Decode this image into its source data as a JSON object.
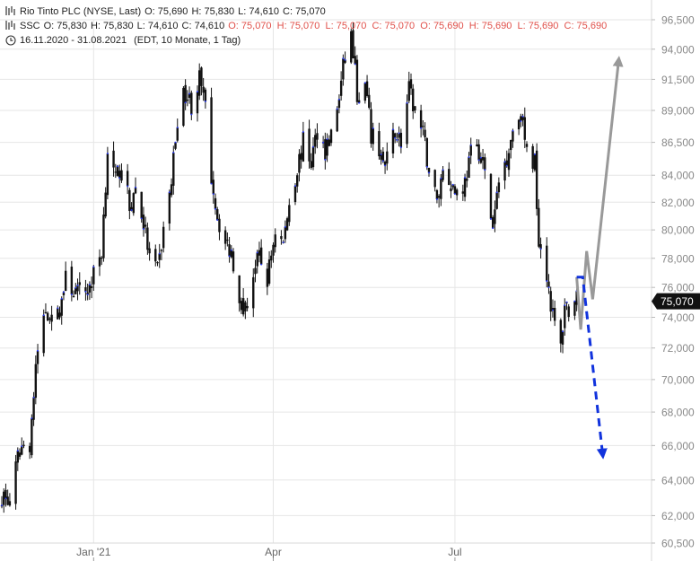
{
  "legend": {
    "row1": {
      "name": "Rio Tinto PLC (NYSE, Last)",
      "o": "O: 75,690",
      "h": "H: 75,830",
      "l": "L: 74,610",
      "c": "C: 75,070"
    },
    "row2": {
      "name": "SSC",
      "o": "O: 75,830",
      "h": "H: 75,830",
      "l": "L: 74,610",
      "c": "C: 74,610",
      "red": "O: 75,070  H: 75,070  L: 75,070  C: 75,070  O: 75,690  H: 75,690  L: 75,690  C: 75,690"
    },
    "row3": {
      "range": "16.11.2020 - 31.08.2021",
      "info": "(EDT, 10 Monate, 1 Tag)"
    }
  },
  "colors": {
    "candle": "#111111",
    "candle_accent": "#2233ee",
    "grid": "#e6e6e6",
    "up_arrow": "#999999",
    "down_arrow": "#1133dd",
    "badge": "#111111"
  },
  "chart_data": {
    "type": "candlestick",
    "y_scale": "log",
    "ylim": [
      60500,
      96500
    ],
    "yticks": [
      96500,
      94000,
      91500,
      89000,
      86500,
      84000,
      82000,
      80000,
      78000,
      76000,
      74000,
      72000,
      70000,
      68000,
      66000,
      64000,
      62000,
      60500
    ],
    "ytick_labels": [
      "96,500",
      "94,000",
      "91,500",
      "89,000",
      "86,500",
      "84,000",
      "82,000",
      "80,000",
      "78,000",
      "76,000",
      "74,000",
      "72,000",
      "70,000",
      "68,000",
      "66,000",
      "64,000",
      "62,000",
      "60,500"
    ],
    "x_range": [
      "2020-11-16",
      "2021-09-24"
    ],
    "xticks": [
      {
        "date": "2021-01-01",
        "label": "Jan '21"
      },
      {
        "date": "2021-04-01",
        "label": "Apr"
      },
      {
        "date": "2021-07-01",
        "label": "Jul"
      }
    ],
    "last_value": 75070,
    "last_label": "75,070",
    "path_points": [
      [
        "2020-11-16",
        63200
      ],
      [
        "2020-11-20",
        62600
      ],
      [
        "2020-11-25",
        65800
      ],
      [
        "2020-11-30",
        66200
      ],
      [
        "2020-12-04",
        71800
      ],
      [
        "2020-12-08",
        74500
      ],
      [
        "2020-12-14",
        74000
      ],
      [
        "2020-12-18",
        76500
      ],
      [
        "2020-12-24",
        75500
      ],
      [
        "2020-12-30",
        76000
      ],
      [
        "2021-01-05",
        78500
      ],
      [
        "2021-01-08",
        86000
      ],
      [
        "2021-01-12",
        83500
      ],
      [
        "2021-01-15",
        85000
      ],
      [
        "2021-01-19",
        81500
      ],
      [
        "2021-01-22",
        83000
      ],
      [
        "2021-01-26",
        80500
      ],
      [
        "2021-01-29",
        78000
      ],
      [
        "2021-02-02",
        77000
      ],
      [
        "2021-02-05",
        80000
      ],
      [
        "2021-02-09",
        83500
      ],
      [
        "2021-02-12",
        88500
      ],
      [
        "2021-02-16",
        90500
      ],
      [
        "2021-02-19",
        89500
      ],
      [
        "2021-02-23",
        91500
      ],
      [
        "2021-02-26",
        89000
      ],
      [
        "2021-03-01",
        84000
      ],
      [
        "2021-03-04",
        81000
      ],
      [
        "2021-03-08",
        79000
      ],
      [
        "2021-03-11",
        78500
      ],
      [
        "2021-03-15",
        75500
      ],
      [
        "2021-03-18",
        74500
      ],
      [
        "2021-03-22",
        77000
      ],
      [
        "2021-03-25",
        78000
      ],
      [
        "2021-03-29",
        76500
      ],
      [
        "2021-04-02",
        80000
      ],
      [
        "2021-04-06",
        79000
      ],
      [
        "2021-04-09",
        82000
      ],
      [
        "2021-04-13",
        84500
      ],
      [
        "2021-04-16",
        86500
      ],
      [
        "2021-04-20",
        85000
      ],
      [
        "2021-04-23",
        87500
      ],
      [
        "2021-04-27",
        86000
      ],
      [
        "2021-04-30",
        87000
      ],
      [
        "2021-05-04",
        90000
      ],
      [
        "2021-05-07",
        93500
      ],
      [
        "2021-05-10",
        95200
      ],
      [
        "2021-05-12",
        92000
      ],
      [
        "2021-05-14",
        89000
      ],
      [
        "2021-05-17",
        91000
      ],
      [
        "2021-05-20",
        87000
      ],
      [
        "2021-05-24",
        86000
      ],
      [
        "2021-05-27",
        84500
      ],
      [
        "2021-06-01",
        87500
      ],
      [
        "2021-06-04",
        86500
      ],
      [
        "2021-06-08",
        90500
      ],
      [
        "2021-06-11",
        89000
      ],
      [
        "2021-06-15",
        87000
      ],
      [
        "2021-06-18",
        84500
      ],
      [
        "2021-06-22",
        82000
      ],
      [
        "2021-06-25",
        84500
      ],
      [
        "2021-06-29",
        83500
      ],
      [
        "2021-07-02",
        82500
      ],
      [
        "2021-07-06",
        83500
      ],
      [
        "2021-07-09",
        85500
      ],
      [
        "2021-07-13",
        86000
      ],
      [
        "2021-07-16",
        84000
      ],
      [
        "2021-07-20",
        80000
      ],
      [
        "2021-07-23",
        83500
      ],
      [
        "2021-07-27",
        85500
      ],
      [
        "2021-07-30",
        87500
      ],
      [
        "2021-08-03",
        89000
      ],
      [
        "2021-08-06",
        85500
      ],
      [
        "2021-08-10",
        85000
      ],
      [
        "2021-08-12",
        79500
      ],
      [
        "2021-08-16",
        77000
      ],
      [
        "2021-08-19",
        74000
      ],
      [
        "2021-08-23",
        72000
      ],
      [
        "2021-08-25",
        75000
      ],
      [
        "2021-08-27",
        74500
      ],
      [
        "2021-08-31",
        75070
      ]
    ],
    "forecast_up": [
      [
        "2021-08-31",
        76700
      ],
      [
        "2021-09-02",
        73200
      ],
      [
        "2021-09-05",
        78500
      ],
      [
        "2021-09-08",
        75200
      ],
      [
        "2021-09-21",
        93000
      ]
    ],
    "forecast_down": [
      [
        "2021-08-31",
        76700
      ],
      [
        "2021-09-03",
        76700
      ],
      [
        "2021-09-13",
        65500
      ]
    ]
  }
}
